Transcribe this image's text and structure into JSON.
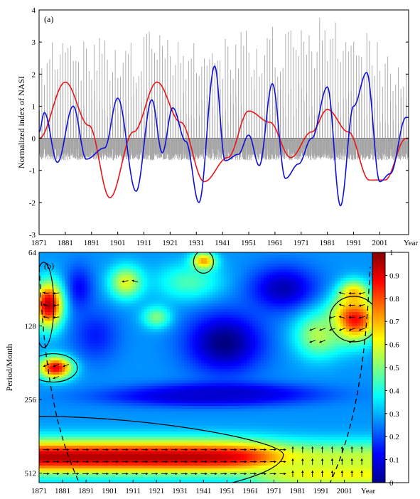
{
  "chart_data": [
    {
      "type": "line",
      "panel_label": "(a)",
      "ylabel": "Normalized index of NASI",
      "xlabel_suffix": "Year",
      "xlim": [
        1871,
        2012
      ],
      "ylim": [
        -3,
        4
      ],
      "yticks": [
        -3,
        -2,
        -1,
        0,
        1,
        2,
        3,
        4
      ],
      "xticks": [
        1871,
        1881,
        1891,
        1901,
        1911,
        1921,
        1931,
        1941,
        1951,
        1961,
        1971,
        1981,
        1991,
        2001
      ],
      "grid": false,
      "legend": "none",
      "zero_line": true,
      "colors": {
        "raw": "#a6a6a6",
        "red_curve": "#e8161b",
        "blue_curve": "#1010d8",
        "zero": "#7f7f7f"
      },
      "series": [
        {
          "role": "monthly index (gray bars)",
          "x": [
            1871,
            1875,
            1880,
            1885,
            1890,
            1895,
            1900,
            1905,
            1910,
            1915,
            1920,
            1925,
            1930,
            1935,
            1940,
            1945,
            1950,
            1955,
            1960,
            1965,
            1970,
            1975,
            1980,
            1985,
            1990,
            1995,
            2000,
            2005,
            2011
          ],
          "envelope_max": [
            2.5,
            3.0,
            3.5,
            3.2,
            3.0,
            3.2,
            3.3,
            3.0,
            3.2,
            3.5,
            3.4,
            3.0,
            3.0,
            2.9,
            3.2,
            3.0,
            3.5,
            3.3,
            3.5,
            3.3,
            3.6,
            3.5,
            3.9,
            3.6,
            3.4,
            3.3,
            3.1,
            2.6,
            2.6
          ],
          "envelope_min": [
            -0.73,
            -0.73,
            -0.73,
            -0.73,
            -0.73,
            -0.73,
            -0.73,
            -0.73,
            -0.73,
            -0.73,
            -0.73,
            -0.73,
            -0.73,
            -0.73,
            -0.73,
            -0.73,
            -0.73,
            -0.73,
            -0.73,
            -0.73,
            -0.73,
            -0.73,
            -0.73,
            -0.73,
            -0.73,
            -0.73,
            -0.73,
            -0.73,
            -0.73
          ]
        },
        {
          "role": "low-frequency component (red)",
          "x": [
            1871,
            1881,
            1890,
            1898,
            1907,
            1916,
            1925,
            1934,
            1943,
            1951,
            1959,
            1967,
            1975,
            1981,
            1989,
            1997,
            2003,
            2011
          ],
          "y": [
            0,
            1.75,
            0.4,
            -1.85,
            0.2,
            1.75,
            0.5,
            -1.35,
            -0.6,
            0.85,
            0.5,
            -0.6,
            0.2,
            0.9,
            0.2,
            -1.3,
            -1.3,
            0
          ]
        },
        {
          "role": "interannual component (blue)",
          "x": [
            1871,
            1873,
            1878,
            1884,
            1889,
            1896,
            1901,
            1908,
            1914,
            1918,
            1922,
            1927,
            1932,
            1938,
            1942,
            1947,
            1951,
            1955,
            1960,
            1965,
            1970,
            1975,
            1981,
            1986,
            1991,
            1996,
            2001,
            2005,
            2011
          ],
          "y": [
            0.2,
            0.8,
            -0.75,
            1.0,
            -0.65,
            -0.3,
            1.25,
            -1.65,
            1.2,
            -0.45,
            0.95,
            -0.1,
            -2.0,
            2.25,
            -0.7,
            -0.5,
            0.1,
            -0.85,
            1.7,
            -1.25,
            -0.8,
            0.0,
            1.6,
            -2.1,
            1.0,
            2.05,
            -1.35,
            -1.1,
            0.65
          ]
        }
      ]
    },
    {
      "type": "heatmap",
      "panel_label": "(b)",
      "ylabel": "Period/Month",
      "xlabel_suffix": "Year",
      "xlim": [
        1871,
        2012
      ],
      "y_scale": "log2",
      "ylim": [
        64,
        560
      ],
      "yticks": [
        64,
        128,
        256,
        512
      ],
      "xticks": [
        1871,
        1881,
        1891,
        1901,
        1911,
        1921,
        1931,
        1941,
        1951,
        1961,
        1971,
        1981,
        1991,
        2001
      ],
      "colorbar": {
        "min": 0,
        "max": 1,
        "ticks": [
          0,
          0.1,
          0.2,
          0.3,
          0.4,
          0.5,
          0.6,
          0.7,
          0.8,
          0.9,
          1
        ]
      },
      "colormap": "jet",
      "background_power": 0.27,
      "cone_of_influence_apex": {
        "year": 1941,
        "period": 600
      },
      "power_blobs": [
        {
          "year": 1941,
          "period": 70,
          "power": 0.8,
          "spread_years": 5,
          "spread_octaves": 0.12
        },
        {
          "year": 1935,
          "period": 85,
          "power": 0.45,
          "spread_years": 14,
          "spread_octaves": 0.25
        },
        {
          "year": 1888,
          "period": 90,
          "power": 0.12,
          "spread_years": 6,
          "spread_octaves": 0.3
        },
        {
          "year": 1895,
          "period": 140,
          "power": 0.15,
          "spread_years": 10,
          "spread_octaves": 0.35
        },
        {
          "year": 1950,
          "period": 150,
          "power": 0.0,
          "spread_years": 16,
          "spread_octaves": 0.4
        },
        {
          "year": 1975,
          "period": 90,
          "power": 0.05,
          "spread_years": 14,
          "spread_octaves": 0.3
        },
        {
          "year": 1908,
          "period": 85,
          "power": 0.6,
          "spread_years": 7,
          "spread_octaves": 0.22
        },
        {
          "year": 1875,
          "period": 105,
          "power": 0.95,
          "spread_years": 6,
          "spread_octaves": 0.3
        },
        {
          "year": 1878,
          "period": 190,
          "power": 0.9,
          "spread_years": 7,
          "spread_octaves": 0.15
        },
        {
          "year": 1921,
          "period": 118,
          "power": 0.5,
          "spread_years": 6,
          "spread_octaves": 0.15
        },
        {
          "year": 2005,
          "period": 120,
          "power": 0.9,
          "spread_years": 10,
          "spread_octaves": 0.3
        },
        {
          "year": 1990,
          "period": 140,
          "power": 0.55,
          "spread_years": 10,
          "spread_octaves": 0.3
        },
        {
          "year": 2005,
          "period": 95,
          "power": 0.7,
          "spread_years": 6,
          "spread_octaves": 0.18
        },
        {
          "year": 1940,
          "period": 250,
          "power": 0.08,
          "spread_years": 40,
          "spread_octaves": 0.12
        }
      ],
      "significance_contours": [
        {
          "label": "upper-left",
          "year": 1873,
          "period": 105
        },
        {
          "label": "mid-left",
          "year": 1877,
          "period": 190
        },
        {
          "label": "right",
          "year": 2005,
          "period": 120
        },
        {
          "label": "top-center",
          "year": 1941,
          "period": 70
        }
      ]
    }
  ]
}
